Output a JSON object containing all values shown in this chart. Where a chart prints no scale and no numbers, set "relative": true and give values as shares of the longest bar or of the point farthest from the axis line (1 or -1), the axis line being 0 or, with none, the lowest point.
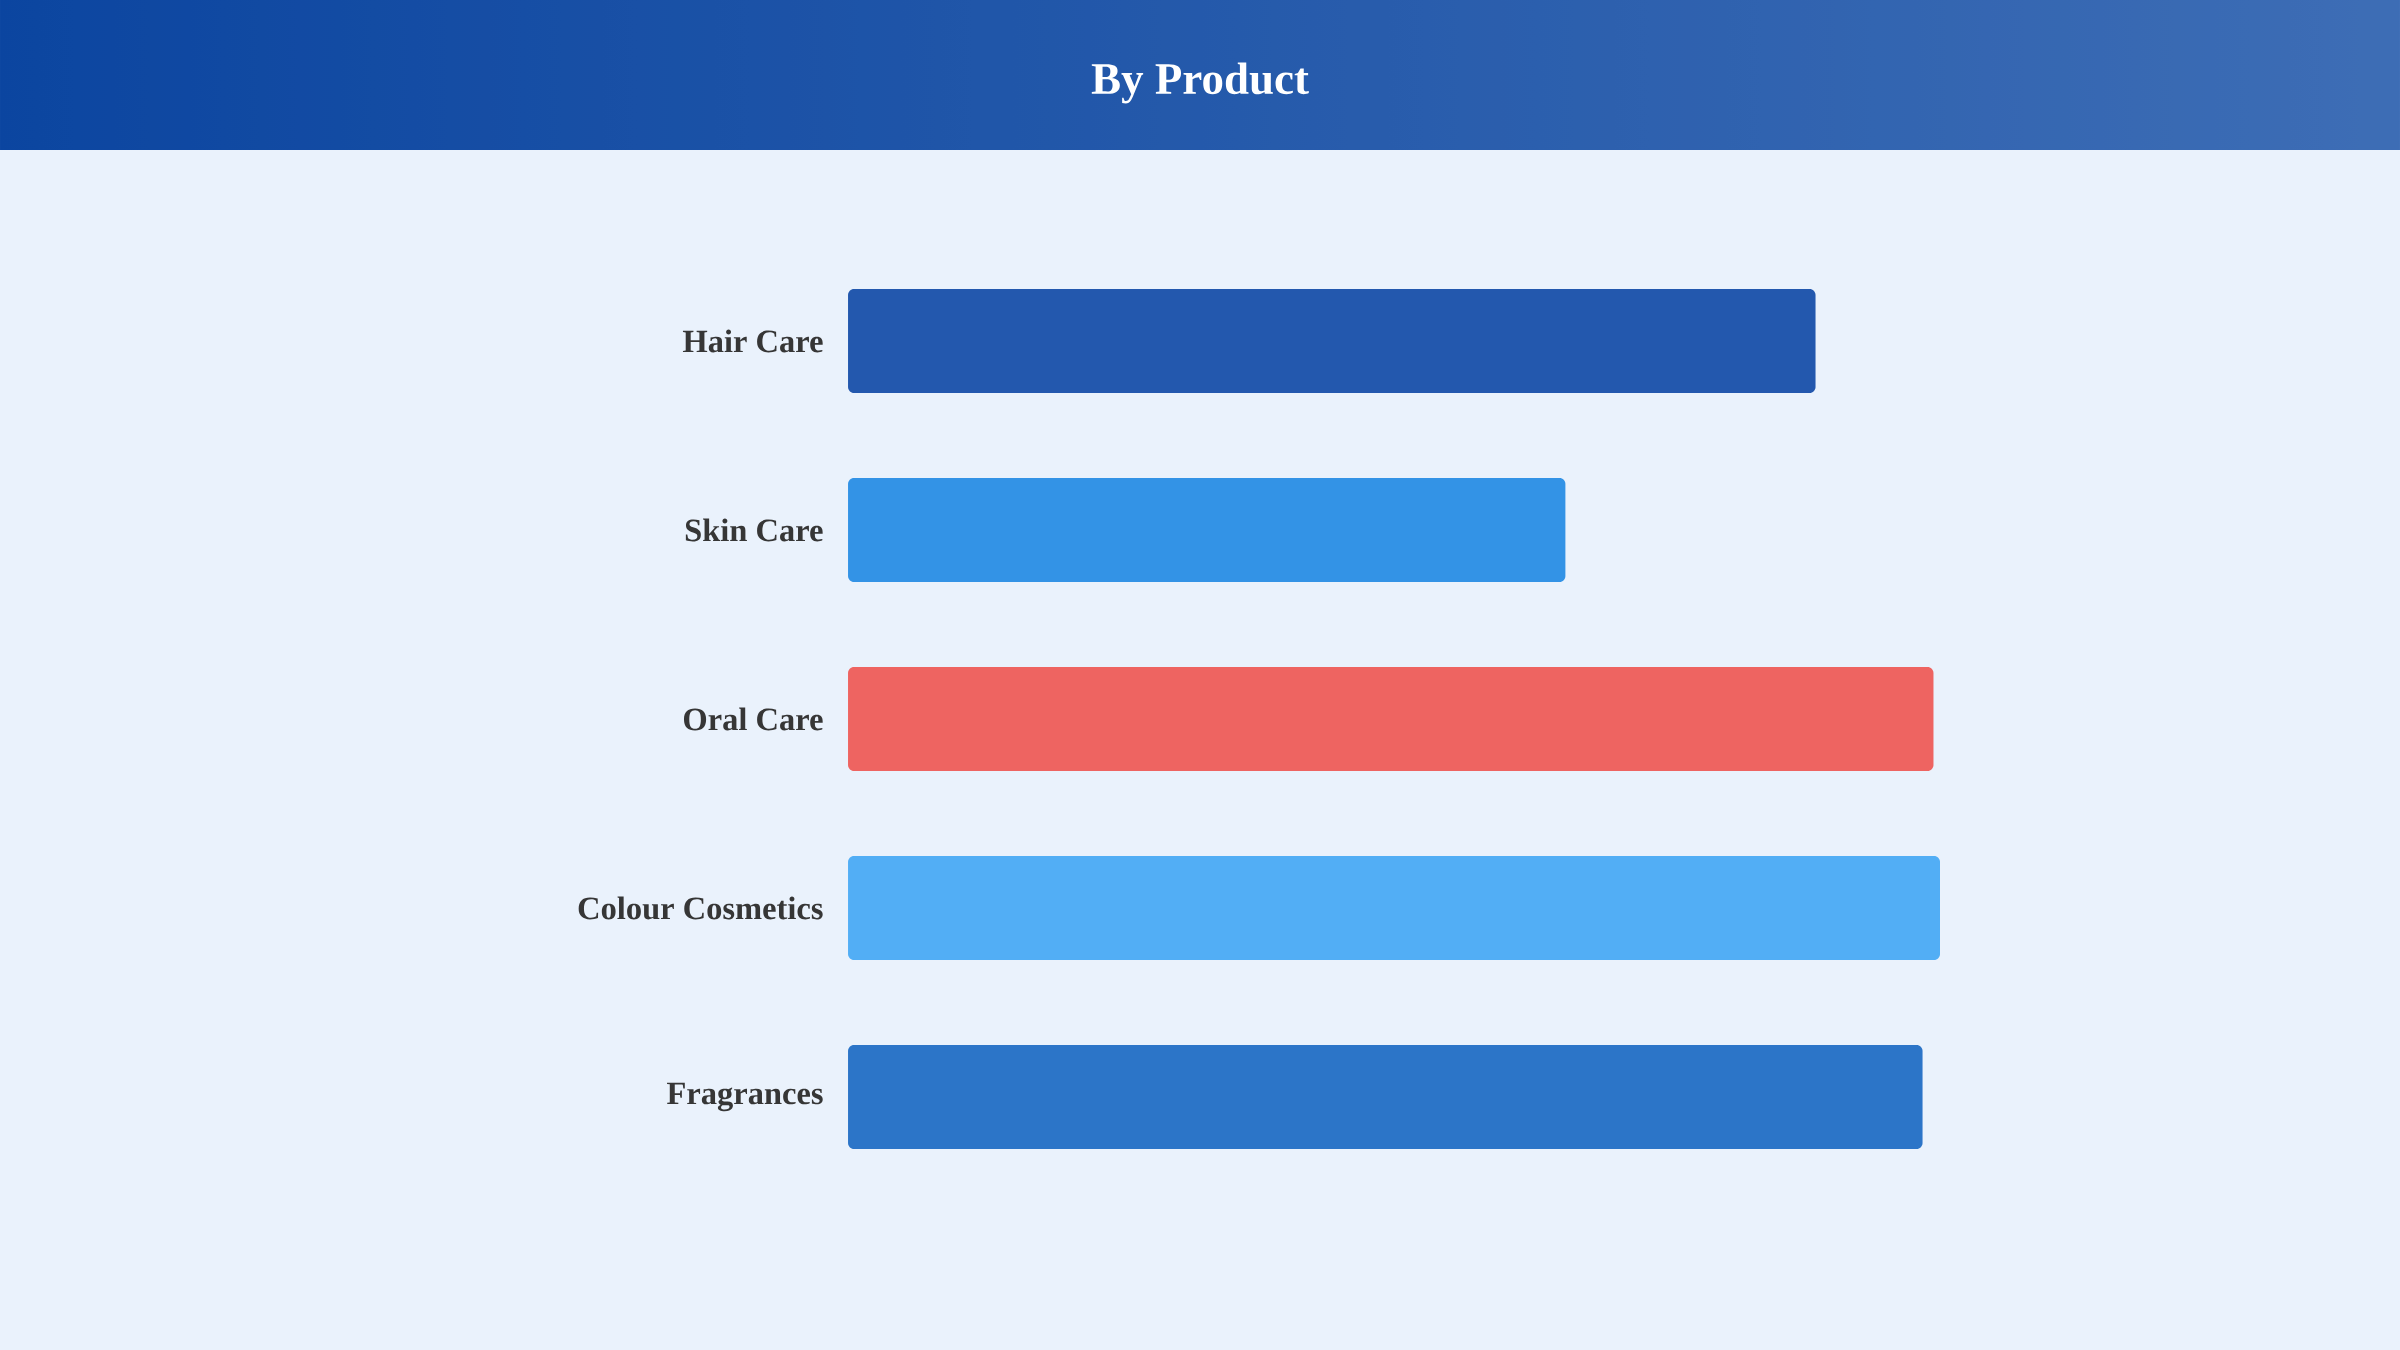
{
  "chart_data": {
    "type": "bar",
    "orientation": "horizontal",
    "relative": true,
    "title": "By Product",
    "categories": [
      "Hair Care",
      "Skin Care",
      "Oral Care",
      "Colour Cosmetics",
      "Fragrances"
    ],
    "values": [
      0.886,
      0.657,
      0.994,
      1,
      0.984
    ],
    "colors": [
      "#2358ae",
      "#3393e6",
      "#ee6461",
      "#52aef5",
      "#2c75c8"
    ]
  }
}
